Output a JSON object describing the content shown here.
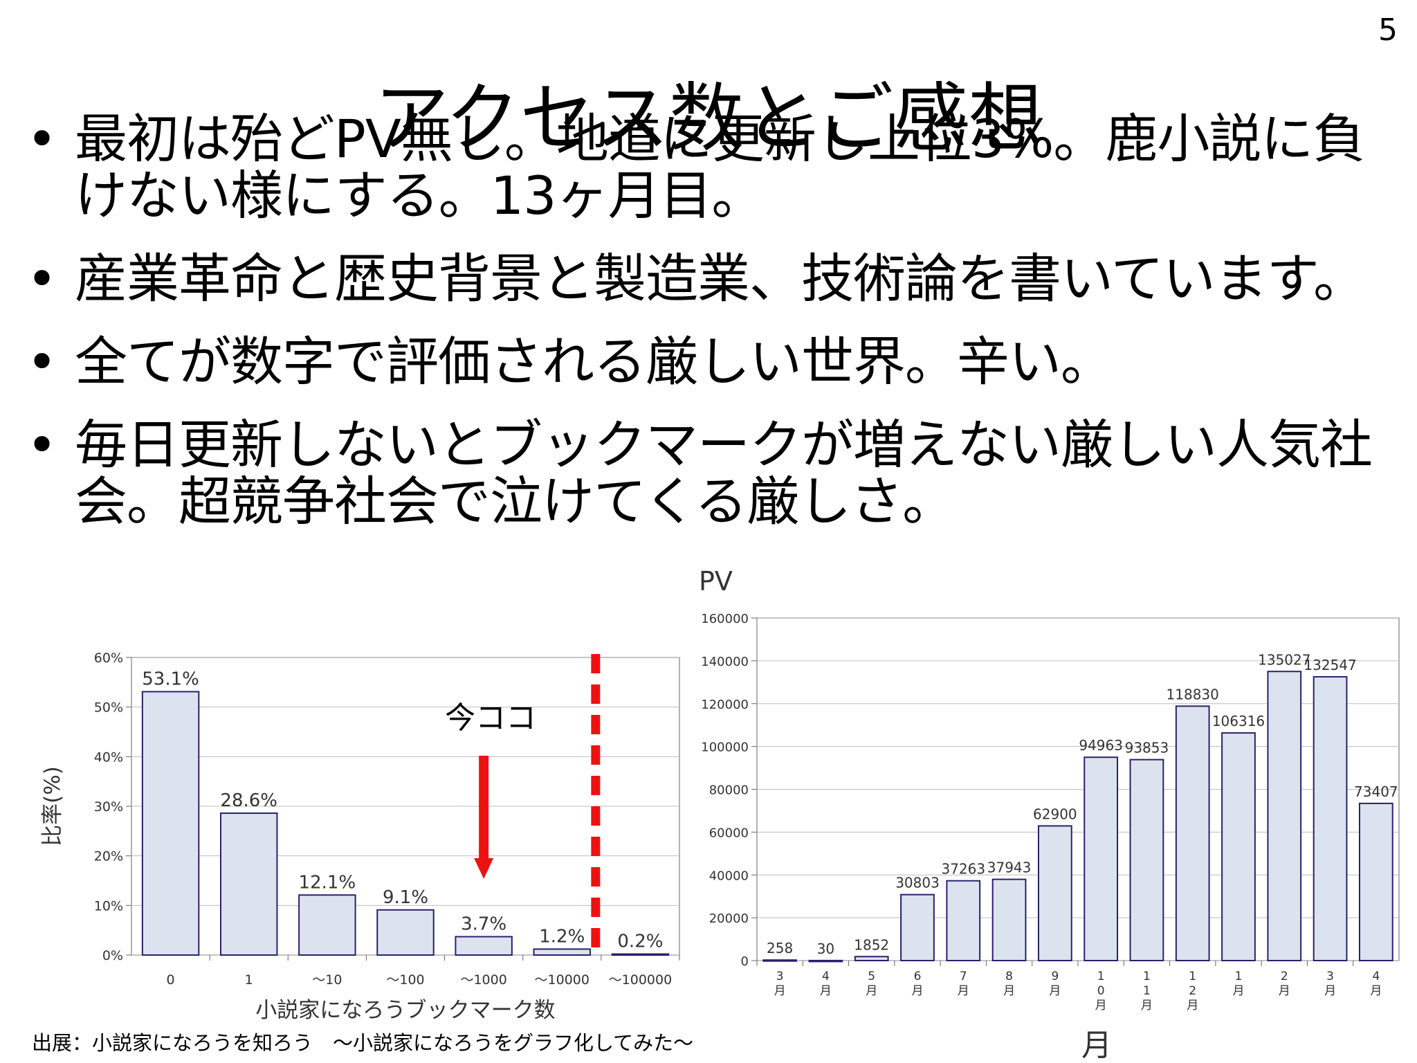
{
  "slide": {
    "page_number": "5",
    "title": "アクセス数とご感想",
    "bullets": [
      "最初は殆どPV無し。地道に更新し上位3%。鹿小説に負けない様にする。13ヶ月目。",
      "産業革命と歴史背景と製造業、技術論を書いています。",
      "全てが数字で評価される厳しい世界。辛い。",
      "毎日更新しないとブックマークが増えない厳しい人気社会。超競争社会で泣けてくる厳しさ。"
    ],
    "bullet_symbol": "•",
    "source_caption": "出展：小説家になろうを知ろう　～小説家になろうをグラフ化してみた～"
  },
  "colors": {
    "bar_fill": "#dde3ee",
    "bar_stroke": "#2a1f6e",
    "marker_red": "#ee1111",
    "grid": "#bdbdbd"
  },
  "chart_data": [
    {
      "type": "bar",
      "title": "",
      "xlabel": "小説家になろうブックマーク数",
      "ylabel": "比率(%)",
      "categories": [
        "0",
        "1",
        "～10",
        "～100",
        "～1000",
        "～10000",
        "～100000"
      ],
      "values": [
        53.1,
        28.6,
        12.1,
        9.1,
        3.7,
        1.2,
        0.2
      ],
      "data_labels": [
        "53.1%",
        "28.6%",
        "12.1%",
        "9.1%",
        "3.7%",
        "1.2%",
        "0.2%"
      ],
      "yticks": [
        "0%",
        "10%",
        "20%",
        "30%",
        "40%",
        "50%",
        "60%"
      ],
      "ylim": [
        0,
        60
      ],
      "grid": true,
      "annotation": {
        "text": "今ココ",
        "points_to_category": "～1000",
        "marker": "red arrow"
      },
      "divider": "red dashed vertical line between ～10000 and ～100000"
    },
    {
      "type": "bar",
      "title": "",
      "xlabel": "月",
      "ylabel": "PV",
      "categories": [
        "3\n月",
        "4\n月",
        "5\n月",
        "6\n月",
        "7\n月",
        "8\n月",
        "9\n月",
        "1\n0\n月",
        "1\n1\n月",
        "1\n2\n月",
        "1\n月",
        "2\n月",
        "3\n月",
        "4\n月"
      ],
      "values": [
        258,
        30,
        1852,
        30803,
        37263,
        37943,
        62900,
        94963,
        93853,
        118830,
        106316,
        135027,
        132547,
        73407
      ],
      "data_labels": [
        "258",
        "30",
        "1852",
        "30803",
        "37263",
        "37943",
        "62900",
        "94963",
        "93853",
        "118830",
        "106316",
        "135027",
        "132547",
        "73407"
      ],
      "yticks": [
        "0",
        "20000",
        "40000",
        "60000",
        "80000",
        "100000",
        "120000",
        "140000",
        "160000"
      ],
      "ylim": [
        0,
        160000
      ],
      "grid": true
    }
  ]
}
